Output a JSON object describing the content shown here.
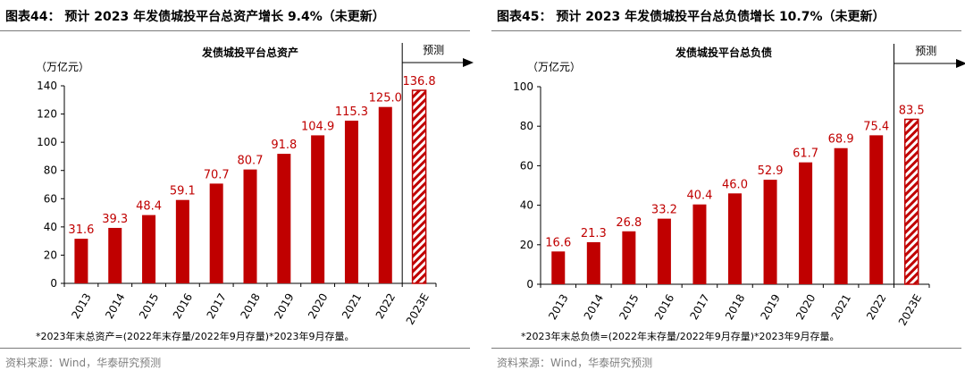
{
  "colors": {
    "bar": "#c00000",
    "label": "#c00000",
    "axis": "#000000",
    "rule": "#7a7a7a",
    "source": "#7f7f7f"
  },
  "panels": [
    {
      "fig_title": "图表44： 预计 2023 年发债城投平台总资产增长 9.4%（未更新）",
      "unit": "（万亿元）",
      "forecast_label": "预测",
      "footnote": "*2023年末总资产=(2022年末存量/2022年9月存量)*2023年9月存量。",
      "source": "资料来源：Wind，华泰研究预测"
    },
    {
      "fig_title": "图表45： 预计 2023 年发债城投平台总负债增长 10.7%（未更新）",
      "unit": "（万亿元）",
      "forecast_label": "预测",
      "footnote": "*2023年末总负债=(2022年末存量/2022年9月存量)*2023年9月存量。",
      "source": "资料来源：Wind，华泰研究预测"
    }
  ],
  "chart_data": [
    {
      "type": "bar",
      "title": "发债城投平台总资产",
      "ylabel": "（万亿元）",
      "categories": [
        "2013",
        "2014",
        "2015",
        "2016",
        "2017",
        "2018",
        "2019",
        "2020",
        "2021",
        "2022",
        "2023E"
      ],
      "values": [
        31.6,
        39.3,
        48.4,
        59.1,
        70.7,
        80.7,
        91.8,
        104.9,
        115.3,
        125.0,
        136.8
      ],
      "labels": [
        "31.6",
        "39.3",
        "48.4",
        "59.1",
        "70.7",
        "80.7",
        "91.8",
        "104.9",
        "115.3",
        "125.0",
        "136.8"
      ],
      "forecast_index": 10,
      "ylim": [
        0,
        140
      ],
      "yticks": [
        "0",
        "20",
        "40",
        "60",
        "80",
        "100",
        "120",
        "140"
      ],
      "grid": false,
      "annotation": "预测"
    },
    {
      "type": "bar",
      "title": "发债城投平台总负债",
      "ylabel": "（万亿元）",
      "categories": [
        "2013",
        "2014",
        "2015",
        "2016",
        "2017",
        "2018",
        "2019",
        "2020",
        "2021",
        "2022",
        "2023E"
      ],
      "values": [
        16.6,
        21.3,
        26.8,
        33.2,
        40.4,
        46.0,
        52.9,
        61.7,
        68.9,
        75.4,
        83.5
      ],
      "labels": [
        "16.6",
        "21.3",
        "26.8",
        "33.2",
        "40.4",
        "46.0",
        "52.9",
        "61.7",
        "68.9",
        "75.4",
        "83.5"
      ],
      "forecast_index": 10,
      "ylim": [
        0,
        100
      ],
      "yticks": [
        "0",
        "20",
        "40",
        "60",
        "80",
        "100"
      ],
      "grid": false,
      "annotation": "预测"
    }
  ]
}
